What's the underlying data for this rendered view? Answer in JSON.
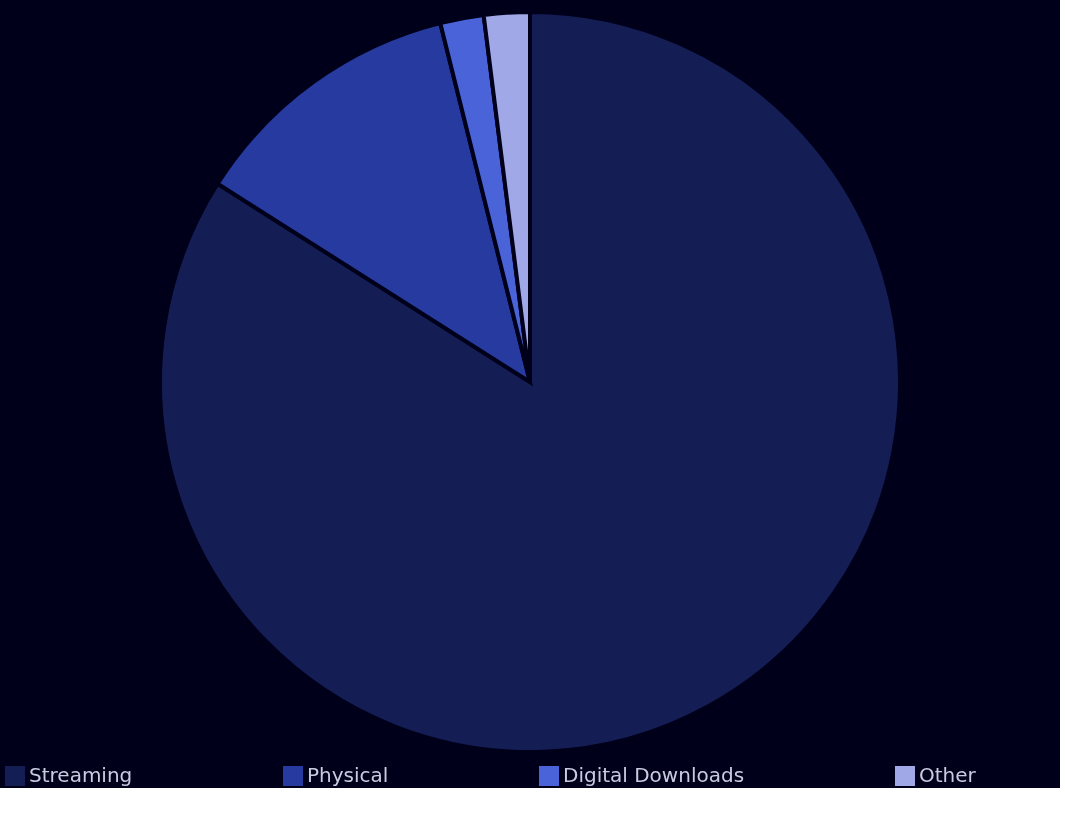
{
  "chart_data": {
    "type": "pie",
    "categories": [
      "Streaming",
      "Physical",
      "Digital Downloads",
      "Other"
    ],
    "values": [
      84.0,
      12.1,
      1.9,
      2.0
    ],
    "colors": [
      "#141e55",
      "#263aa0",
      "#4a63d8",
      "#a0a8e8"
    ],
    "legend": "bottom"
  }
}
